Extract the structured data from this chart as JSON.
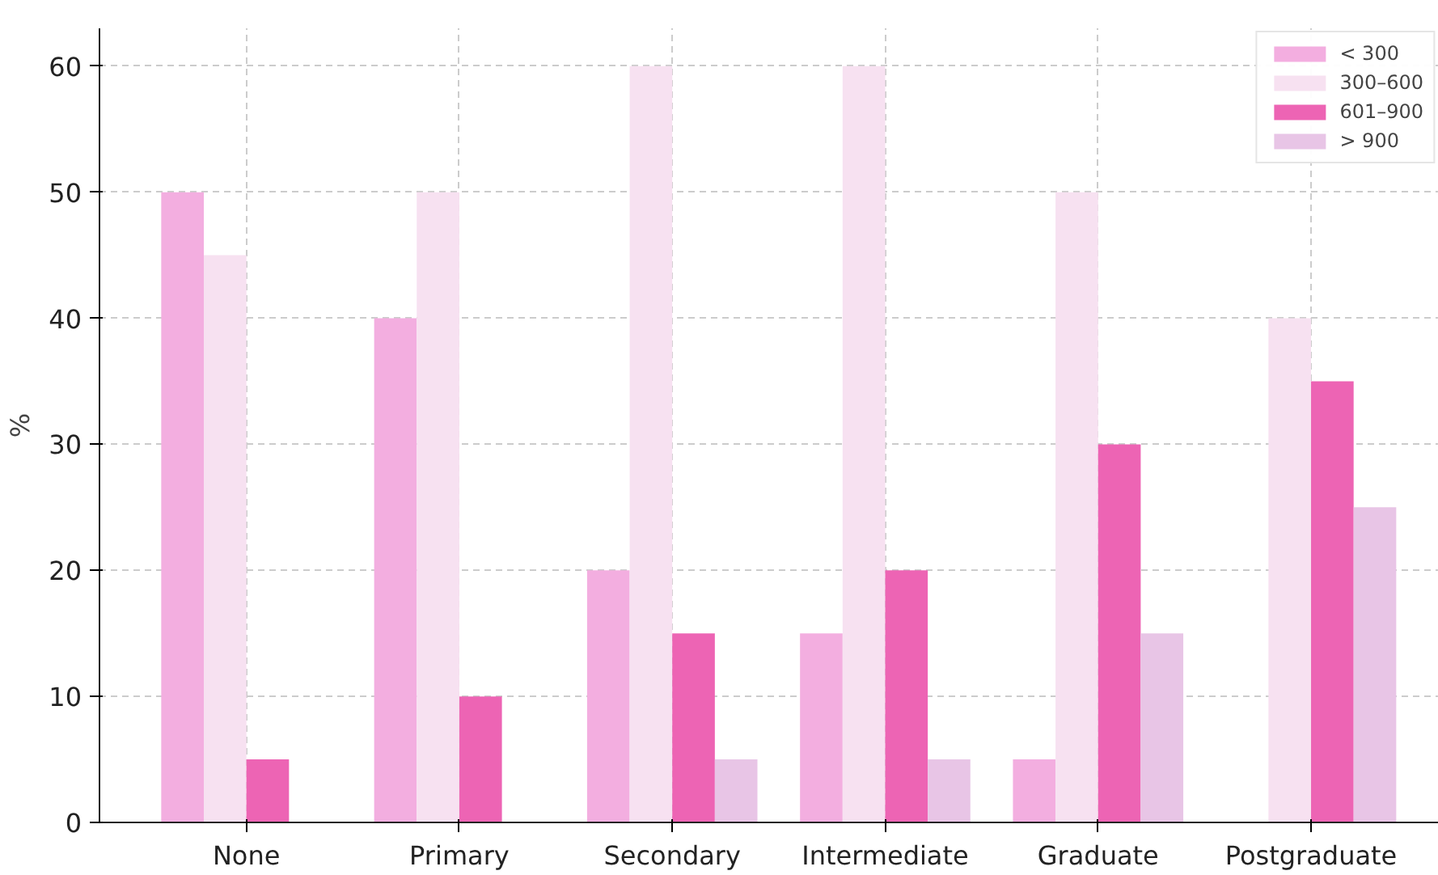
{
  "chart_data": {
    "type": "bar",
    "ylabel": "%",
    "categories": [
      "None",
      "Primary",
      "Secondary",
      "Intermediate",
      "Graduate",
      "Postgraduate"
    ],
    "series": [
      {
        "name": "< 300",
        "color": "#f3aee0",
        "values": [
          50,
          40,
          20,
          15,
          5,
          0
        ]
      },
      {
        "name": "300–600",
        "color": "#f7e1f1",
        "values": [
          45,
          50,
          60,
          60,
          50,
          40
        ]
      },
      {
        "name": "601–900",
        "color": "#ed64b4",
        "values": [
          5,
          10,
          15,
          20,
          30,
          35
        ]
      },
      {
        "name": "> 900",
        "color": "#e8c5e6",
        "values": [
          0,
          0,
          5,
          5,
          15,
          25
        ]
      }
    ],
    "ylim": [
      0,
      63
    ],
    "yticks": [
      0,
      10,
      20,
      30,
      40,
      50,
      60
    ],
    "grid": true,
    "legend": "top right"
  }
}
